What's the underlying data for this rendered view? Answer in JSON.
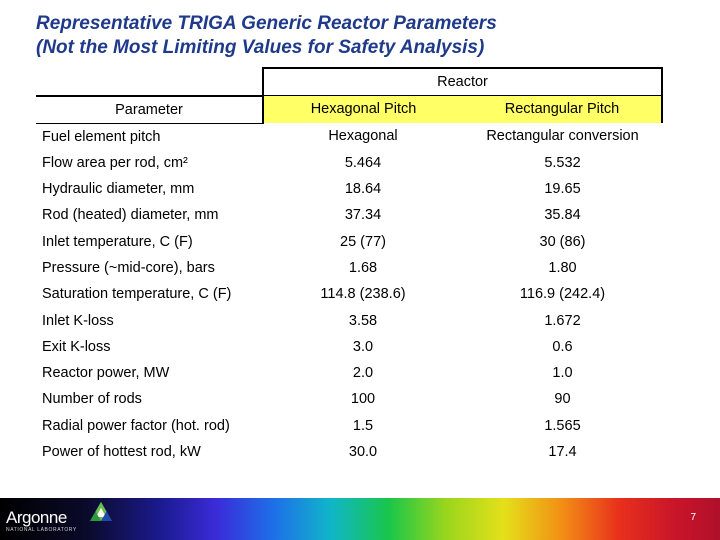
{
  "slide": {
    "title_line1": "Representative TRIGA Generic Reactor Parameters",
    "title_line2": "(Not the Most Limiting Values for Safety Analysis)",
    "page_number": "7"
  },
  "table": {
    "group_header": "Reactor",
    "headers": [
      "Parameter",
      "Hexagonal Pitch",
      "Rectangular Pitch"
    ],
    "rows": [
      [
        "Fuel element pitch",
        "Hexagonal",
        "Rectangular conversion"
      ],
      [
        "Flow area per rod, cm²",
        "5.464",
        "5.532"
      ],
      [
        "Hydraulic diameter, mm",
        "18.64",
        "19.65"
      ],
      [
        "Rod (heated) diameter, mm",
        "37.34",
        "35.84"
      ],
      [
        "Inlet temperature, C (F)",
        "25 (77)",
        "30 (86)"
      ],
      [
        "Pressure (~mid-core), bars",
        "1.68",
        "1.80"
      ],
      [
        "Saturation temperature, C (F)",
        "114.8 (238.6)",
        "116.9 (242.4)"
      ],
      [
        "Inlet K-loss",
        "3.58",
        "1.672"
      ],
      [
        "Exit K-loss",
        "3.0",
        "0.6"
      ],
      [
        "Reactor power, MW",
        "2.0",
        "1.0"
      ],
      [
        "Number of rods",
        "100",
        "90"
      ],
      [
        "Radial power factor (hot. rod)",
        "1.5",
        "1.565"
      ],
      [
        "Power of hottest rod, kW",
        "30.0",
        "17.4"
      ]
    ]
  },
  "footer": {
    "logo_text": "Argonne",
    "logo_subtext": "NATIONAL LABORATORY",
    "logo_icon": "argonne-triangle-icon"
  },
  "colors": {
    "title": "#1f3a8a",
    "header_highlight": "#ffff66"
  }
}
